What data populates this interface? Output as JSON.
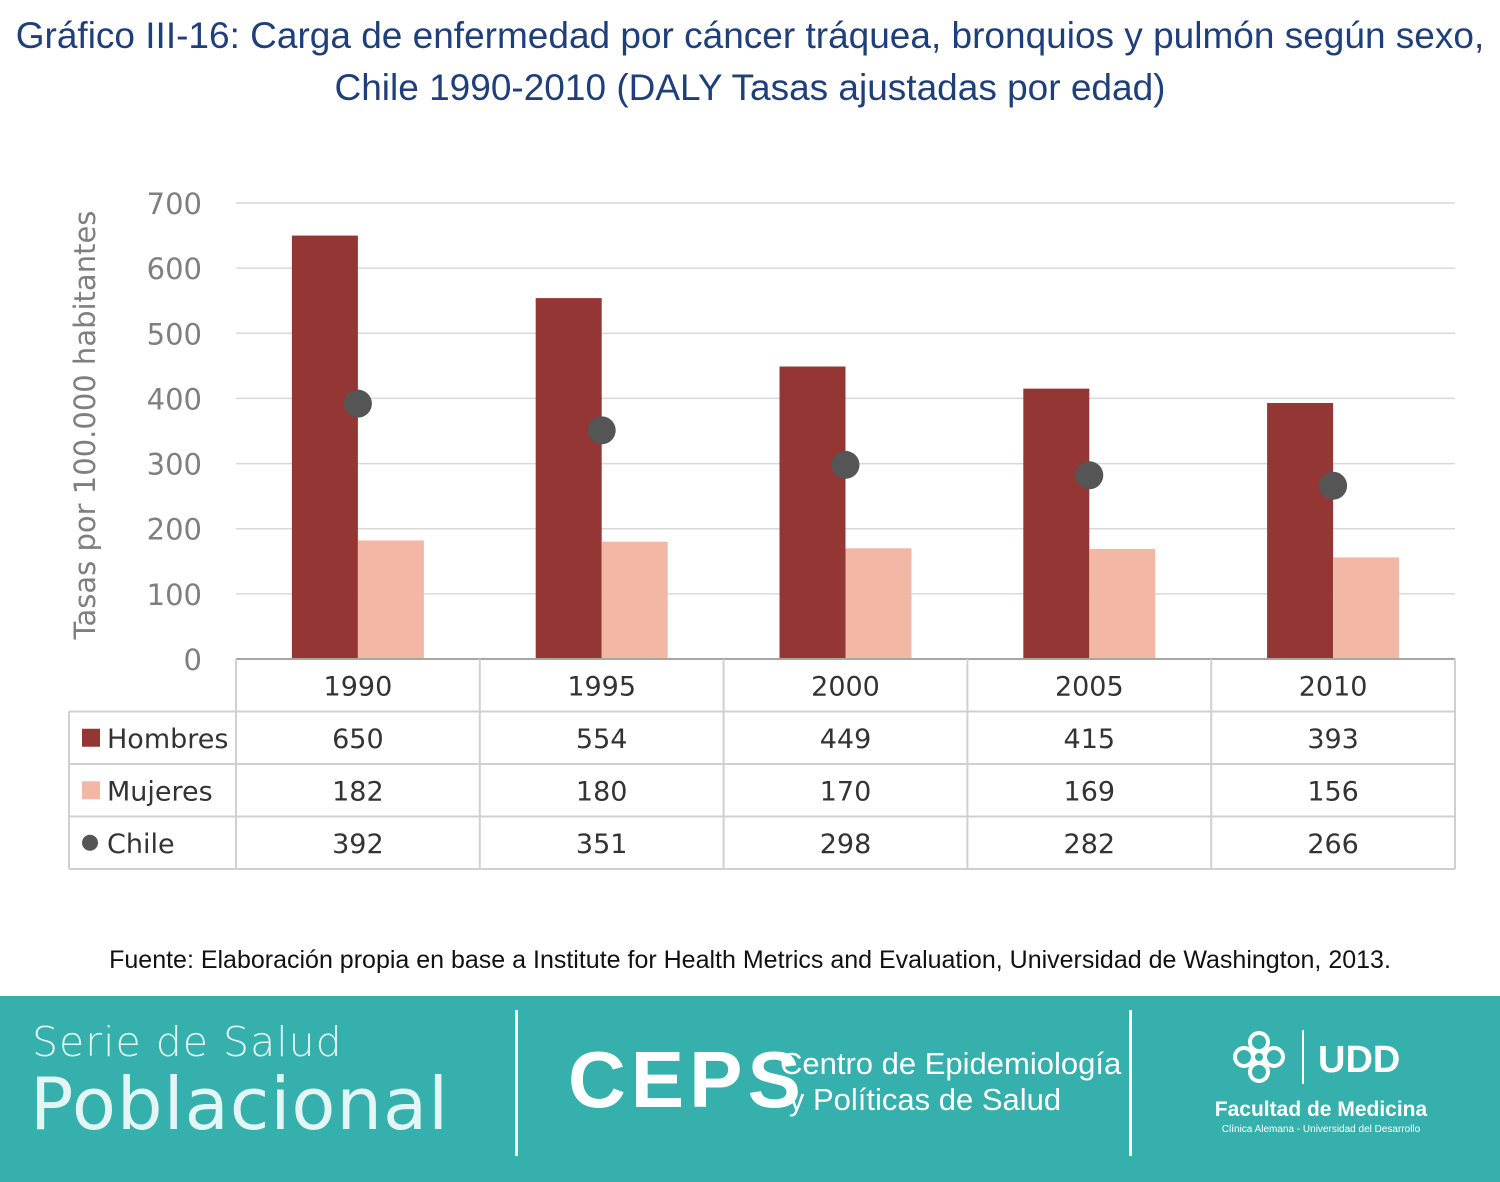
{
  "title": {
    "line1": "Gráfico III-16: Carga de enfermedad por cáncer tráquea, bronquios y pulmón según sexo,",
    "line2": "Chile 1990-2010 (DALY Tasas ajustadas por edad)"
  },
  "chart_data": {
    "type": "bar",
    "ylabel": "Tasas por 100.000 habitantes",
    "ylim": [
      0,
      700
    ],
    "yticks": [
      0,
      100,
      200,
      300,
      400,
      500,
      600,
      700
    ],
    "grid": true,
    "legend_placement": "data table below chart",
    "categories": [
      "1990",
      "1995",
      "2000",
      "2005",
      "2010"
    ],
    "series": [
      {
        "name": "Hombres",
        "kind": "bar",
        "color": "#933634",
        "values": [
          650,
          554,
          449,
          415,
          393
        ]
      },
      {
        "name": "Mujeres",
        "kind": "bar",
        "color": "#f3b8a5",
        "values": [
          182,
          180,
          170,
          169,
          156
        ]
      },
      {
        "name": "Chile",
        "kind": "marker",
        "color": "#555555",
        "values": [
          392,
          351,
          298,
          282,
          266
        ]
      }
    ]
  },
  "source": "Fuente: Elaboración propia en base a Institute for Health Metrics and Evaluation, Universidad de Washington, 2013.",
  "footer": {
    "background": "#35b0ac",
    "serie_line1": "Serie de Salud",
    "serie_line2": "Poblacional",
    "ceps": "CEPS",
    "ceps_sub1": "Centro de Epidemiología",
    "ceps_sub2": "y Políticas de Salud",
    "faculty": "Facultad de Medicina",
    "faculty_sub": "Clínica Alemana - Universidad del Desarrollo",
    "udd_logo_text": "UDD"
  }
}
